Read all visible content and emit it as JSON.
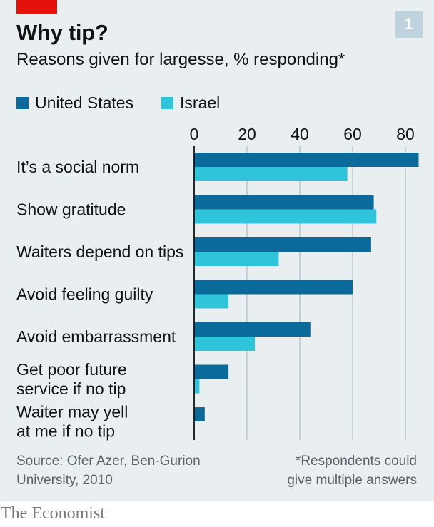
{
  "header": {
    "title": "Why tip?",
    "subtitle": "Reasons given for largesse, % responding*",
    "badge": "1"
  },
  "legend": [
    {
      "label": "United States",
      "color": "#0c6a9b"
    },
    {
      "label": "Israel",
      "color": "#2fc4d9"
    }
  ],
  "chart_data": {
    "type": "bar",
    "orientation": "horizontal",
    "categories": [
      [
        "It’s a social norm"
      ],
      [
        "Show gratitude"
      ],
      [
        "Waiters depend on tips"
      ],
      [
        "Avoid feeling guilty"
      ],
      [
        "Avoid embarrassment"
      ],
      [
        "Get poor future",
        "service if no tip"
      ],
      [
        "Waiter may yell",
        "at me if no tip"
      ]
    ],
    "series": [
      {
        "name": "United States",
        "values": [
          85,
          68,
          67,
          60,
          44,
          13,
          4
        ]
      },
      {
        "name": "Israel",
        "values": [
          58,
          69,
          32,
          13,
          23,
          2,
          0
        ]
      }
    ],
    "xticks": [
      0,
      20,
      40,
      60,
      80
    ],
    "xlim": [
      0,
      85
    ],
    "grid": true,
    "legend_position": "top-left"
  },
  "footer": {
    "source_line1": "Source: Ofer Azer, Ben-Gurion",
    "source_line2": "University, 2010",
    "note_line1": "*Respondents could",
    "note_line2": "give multiple answers"
  },
  "brand": {
    "logo": "The Economist"
  }
}
